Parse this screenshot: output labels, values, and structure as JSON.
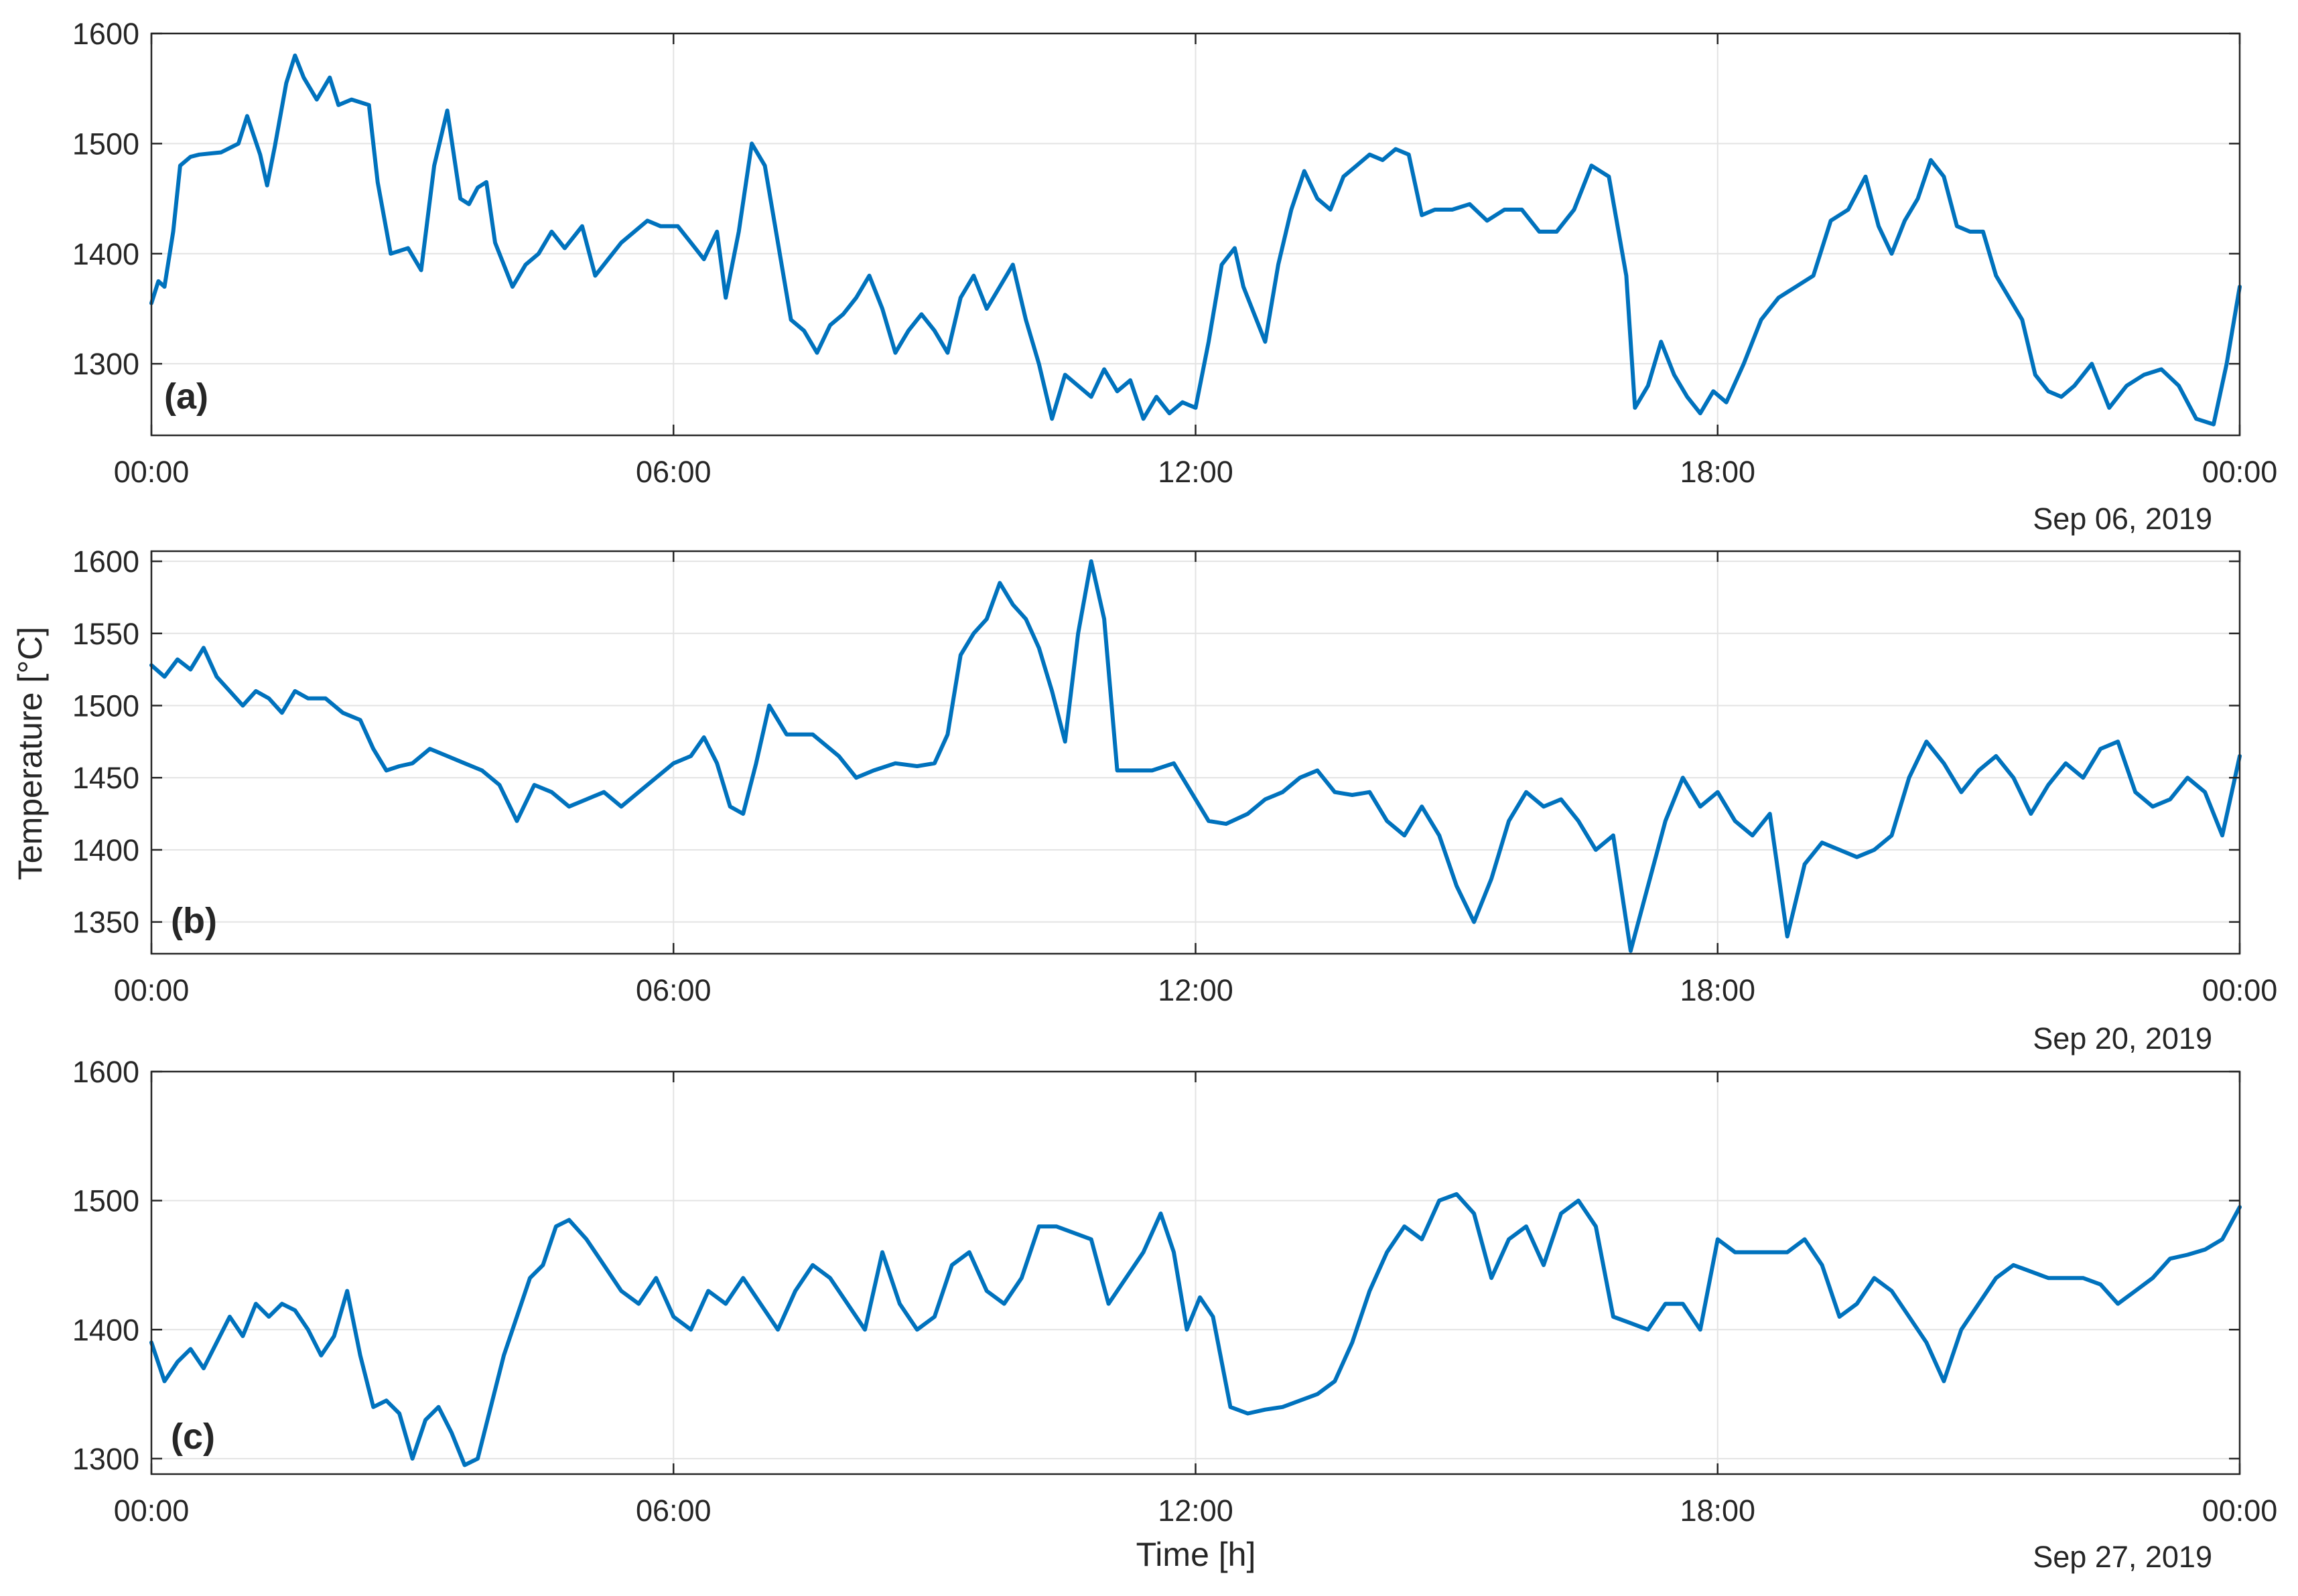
{
  "figure": {
    "ylabel": "Temperature [°C]",
    "xlabel": "Time [h]",
    "line_color": "#0072BD"
  },
  "chart_data": [
    {
      "type": "line",
      "panel": "(a)",
      "date": "Sep 06, 2019",
      "xlabel": "",
      "ylabel": "",
      "xlim": [
        0,
        24
      ],
      "ylim": [
        1235,
        1600
      ],
      "xticks": [
        0,
        6,
        12,
        18,
        24
      ],
      "xticklabels": [
        "00:00",
        "06:00",
        "12:00",
        "18:00",
        "00:00"
      ],
      "yticks": [
        1300,
        1400,
        1500,
        1600
      ],
      "yticklabels": [
        "1300",
        "1400",
        "1500",
        "1600"
      ],
      "grid": true,
      "series": [
        {
          "name": "Temperature",
          "x": [
            0,
            0.08,
            0.15,
            0.25,
            0.33,
            0.45,
            0.55,
            0.8,
            1.0,
            1.1,
            1.25,
            1.33,
            1.42,
            1.55,
            1.65,
            1.75,
            1.9,
            2.05,
            2.15,
            2.3,
            2.5,
            2.6,
            2.75,
            2.95,
            3.1,
            3.25,
            3.4,
            3.55,
            3.65,
            3.75,
            3.85,
            3.95,
            4.15,
            4.3,
            4.45,
            4.6,
            4.75,
            4.95,
            5.1,
            5.25,
            5.4,
            5.55,
            5.7,
            5.85,
            6.05,
            6.2,
            6.35,
            6.5,
            6.6,
            6.75,
            6.9,
            7.05,
            7.2,
            7.35,
            7.5,
            7.65,
            7.8,
            7.95,
            8.1,
            8.25,
            8.4,
            8.55,
            8.7,
            8.85,
            9.0,
            9.15,
            9.3,
            9.45,
            9.6,
            9.75,
            9.9,
            10.05,
            10.2,
            10.35,
            10.5,
            10.65,
            10.8,
            10.95,
            11.1,
            11.25,
            11.4,
            11.55,
            11.7,
            11.85,
            12.0,
            12.15,
            12.3,
            12.45,
            12.55,
            12.65,
            12.8,
            12.95,
            13.1,
            13.25,
            13.4,
            13.55,
            13.7,
            13.85,
            14.0,
            14.15,
            14.3,
            14.45,
            14.6,
            14.75,
            14.95,
            15.15,
            15.35,
            15.55,
            15.75,
            15.95,
            16.15,
            16.35,
            16.55,
            16.75,
            16.95,
            17.05,
            17.2,
            17.35,
            17.5,
            17.65,
            17.8,
            17.95,
            18.1,
            18.3,
            18.5,
            18.7,
            18.9,
            19.1,
            19.3,
            19.5,
            19.7,
            19.85,
            20.0,
            20.15,
            20.3,
            20.45,
            20.6,
            20.75,
            20.9,
            21.05,
            21.2,
            21.35,
            21.5,
            21.65,
            21.8,
            21.95,
            22.1,
            22.3,
            22.5,
            22.7,
            22.9,
            23.1,
            23.3,
            23.5,
            23.7,
            23.85,
            24.0
          ],
          "values": [
            1355,
            1375,
            1370,
            1420,
            1480,
            1488,
            1490,
            1492,
            1500,
            1525,
            1490,
            1462,
            1498,
            1555,
            1580,
            1560,
            1540,
            1560,
            1535,
            1540,
            1535,
            1465,
            1400,
            1405,
            1385,
            1480,
            1530,
            1450,
            1445,
            1460,
            1465,
            1410,
            1370,
            1390,
            1400,
            1420,
            1405,
            1425,
            1380,
            1395,
            1410,
            1420,
            1430,
            1425,
            1425,
            1410,
            1395,
            1420,
            1360,
            1420,
            1500,
            1480,
            1410,
            1340,
            1330,
            1310,
            1335,
            1345,
            1360,
            1380,
            1350,
            1310,
            1330,
            1345,
            1330,
            1310,
            1360,
            1380,
            1350,
            1370,
            1390,
            1340,
            1300,
            1250,
            1290,
            1280,
            1270,
            1295,
            1275,
            1285,
            1250,
            1270,
            1255,
            1265,
            1260,
            1320,
            1390,
            1405,
            1370,
            1350,
            1320,
            1390,
            1440,
            1475,
            1450,
            1440,
            1470,
            1480,
            1490,
            1485,
            1495,
            1490,
            1435,
            1440,
            1440,
            1445,
            1430,
            1440,
            1440,
            1420,
            1420,
            1440,
            1480,
            1470,
            1380,
            1260,
            1280,
            1320,
            1290,
            1270,
            1255,
            1275,
            1265,
            1300,
            1340,
            1360,
            1370,
            1380,
            1430,
            1440,
            1470,
            1425,
            1400,
            1430,
            1450,
            1485,
            1470,
            1425,
            1420,
            1420,
            1380,
            1360,
            1340,
            1290,
            1275,
            1270,
            1280,
            1300,
            1260,
            1280,
            1290,
            1295,
            1280,
            1250,
            1245,
            1300,
            1370
          ]
        }
      ]
    },
    {
      "type": "line",
      "panel": "(b)",
      "date": "Sep 20, 2019",
      "xlabel": "",
      "ylabel": "",
      "xlim": [
        0,
        24
      ],
      "ylim": [
        1328,
        1607
      ],
      "xticks": [
        0,
        6,
        12,
        18,
        24
      ],
      "xticklabels": [
        "00:00",
        "06:00",
        "12:00",
        "18:00",
        "00:00"
      ],
      "yticks": [
        1350,
        1400,
        1450,
        1500,
        1550,
        1600
      ],
      "yticklabels": [
        "1350",
        "1400",
        "1450",
        "1500",
        "1550",
        "1600"
      ],
      "grid": true,
      "series": [
        {
          "name": "Temperature",
          "x": [
            0,
            0.15,
            0.3,
            0.45,
            0.6,
            0.75,
            0.9,
            1.05,
            1.2,
            1.35,
            1.5,
            1.65,
            1.8,
            2.0,
            2.2,
            2.4,
            2.55,
            2.7,
            2.85,
            3.0,
            3.2,
            3.4,
            3.6,
            3.8,
            4.0,
            4.2,
            4.4,
            4.6,
            4.8,
            5.0,
            5.2,
            5.4,
            5.6,
            5.8,
            6.0,
            6.2,
            6.35,
            6.5,
            6.65,
            6.8,
            6.95,
            7.1,
            7.3,
            7.6,
            7.9,
            8.1,
            8.3,
            8.55,
            8.8,
            9.0,
            9.15,
            9.3,
            9.45,
            9.6,
            9.75,
            9.9,
            10.05,
            10.2,
            10.35,
            10.5,
            10.65,
            10.8,
            10.95,
            11.1,
            11.3,
            11.5,
            11.75,
            11.95,
            12.15,
            12.35,
            12.6,
            12.8,
            13.0,
            13.2,
            13.4,
            13.6,
            13.8,
            14.0,
            14.2,
            14.4,
            14.6,
            14.8,
            15.0,
            15.2,
            15.4,
            15.6,
            15.8,
            16.0,
            16.2,
            16.4,
            16.6,
            16.8,
            17.0,
            17.2,
            17.4,
            17.6,
            17.8,
            18.0,
            18.2,
            18.4,
            18.6,
            18.8,
            19.0,
            19.2,
            19.4,
            19.6,
            19.8,
            20.0,
            20.2,
            20.4,
            20.6,
            20.8,
            21.0,
            21.2,
            21.4,
            21.6,
            21.8,
            22.0,
            22.2,
            22.4,
            22.6,
            22.8,
            23.0,
            23.2,
            23.4,
            23.6,
            23.8,
            24.0
          ],
          "values": [
            1528,
            1520,
            1532,
            1525,
            1540,
            1520,
            1510,
            1500,
            1510,
            1505,
            1495,
            1510,
            1505,
            1505,
            1495,
            1490,
            1470,
            1455,
            1458,
            1460,
            1470,
            1465,
            1460,
            1455,
            1445,
            1420,
            1445,
            1440,
            1430,
            1435,
            1440,
            1430,
            1440,
            1450,
            1460,
            1465,
            1478,
            1460,
            1430,
            1425,
            1460,
            1500,
            1480,
            1480,
            1465,
            1450,
            1455,
            1460,
            1458,
            1460,
            1480,
            1535,
            1550,
            1560,
            1585,
            1570,
            1560,
            1540,
            1510,
            1475,
            1550,
            1600,
            1560,
            1455,
            1455,
            1455,
            1460,
            1440,
            1420,
            1418,
            1425,
            1435,
            1440,
            1450,
            1455,
            1440,
            1438,
            1440,
            1420,
            1410,
            1430,
            1410,
            1375,
            1350,
            1380,
            1420,
            1440,
            1430,
            1435,
            1420,
            1400,
            1410,
            1330,
            1375,
            1420,
            1450,
            1430,
            1440,
            1420,
            1410,
            1425,
            1340,
            1390,
            1405,
            1400,
            1395,
            1400,
            1410,
            1450,
            1475,
            1460,
            1440,
            1455,
            1465,
            1450,
            1425,
            1445,
            1460,
            1450,
            1470,
            1475,
            1440,
            1430,
            1435,
            1450,
            1440,
            1410,
            1465
          ]
        }
      ]
    },
    {
      "type": "line",
      "panel": "(c)",
      "date": "Sep 27, 2019",
      "xlabel": "Time [h]",
      "ylabel": "",
      "xlim": [
        0,
        24
      ],
      "ylim": [
        1288,
        1600
      ],
      "xticks": [
        0,
        6,
        12,
        18,
        24
      ],
      "xticklabels": [
        "00:00",
        "06:00",
        "12:00",
        "18:00",
        "00:00"
      ],
      "yticks": [
        1300,
        1400,
        1500,
        1600
      ],
      "yticklabels": [
        "1300",
        "1400",
        "1500",
        "1600"
      ],
      "grid": true,
      "series": [
        {
          "name": "Temperature",
          "x": [
            0,
            0.15,
            0.3,
            0.45,
            0.6,
            0.75,
            0.9,
            1.05,
            1.2,
            1.35,
            1.5,
            1.65,
            1.8,
            1.95,
            2.1,
            2.25,
            2.4,
            2.55,
            2.7,
            2.85,
            3.0,
            3.15,
            3.3,
            3.45,
            3.6,
            3.75,
            3.9,
            4.05,
            4.2,
            4.35,
            4.5,
            4.65,
            4.8,
            5.0,
            5.2,
            5.4,
            5.6,
            5.8,
            6.0,
            6.2,
            6.4,
            6.6,
            6.8,
            7.0,
            7.2,
            7.4,
            7.6,
            7.8,
            8.0,
            8.2,
            8.4,
            8.6,
            8.8,
            9.0,
            9.2,
            9.4,
            9.6,
            9.8,
            10.0,
            10.2,
            10.4,
            10.6,
            10.8,
            11.0,
            11.2,
            11.4,
            11.6,
            11.75,
            11.9,
            12.05,
            12.2,
            12.4,
            12.6,
            12.8,
            13.0,
            13.2,
            13.4,
            13.6,
            13.8,
            14.0,
            14.2,
            14.4,
            14.6,
            14.8,
            15.0,
            15.2,
            15.4,
            15.6,
            15.8,
            16.0,
            16.2,
            16.4,
            16.6,
            16.8,
            17.0,
            17.2,
            17.4,
            17.6,
            17.8,
            18.0,
            18.2,
            18.4,
            18.6,
            18.8,
            19.0,
            19.2,
            19.4,
            19.6,
            19.8,
            20.0,
            20.2,
            20.4,
            20.6,
            20.8,
            21.0,
            21.2,
            21.4,
            21.6,
            21.8,
            22.0,
            22.2,
            22.4,
            22.6,
            22.8,
            23.0,
            23.2,
            23.4,
            23.6,
            23.8,
            24.0
          ],
          "values": [
            1390,
            1360,
            1375,
            1385,
            1370,
            1390,
            1410,
            1395,
            1420,
            1410,
            1420,
            1415,
            1400,
            1380,
            1395,
            1430,
            1380,
            1340,
            1345,
            1335,
            1300,
            1330,
            1340,
            1320,
            1295,
            1300,
            1340,
            1380,
            1410,
            1440,
            1450,
            1480,
            1485,
            1470,
            1450,
            1430,
            1420,
            1440,
            1410,
            1400,
            1430,
            1420,
            1440,
            1420,
            1400,
            1430,
            1450,
            1440,
            1420,
            1400,
            1460,
            1420,
            1400,
            1410,
            1450,
            1460,
            1430,
            1420,
            1440,
            1480,
            1480,
            1475,
            1470,
            1420,
            1440,
            1460,
            1490,
            1460,
            1400,
            1425,
            1410,
            1340,
            1335,
            1338,
            1340,
            1345,
            1350,
            1360,
            1390,
            1430,
            1460,
            1480,
            1470,
            1500,
            1505,
            1490,
            1440,
            1470,
            1480,
            1450,
            1490,
            1500,
            1480,
            1410,
            1405,
            1400,
            1420,
            1420,
            1400,
            1470,
            1460,
            1460,
            1460,
            1460,
            1470,
            1450,
            1410,
            1420,
            1440,
            1430,
            1410,
            1390,
            1360,
            1400,
            1420,
            1440,
            1450,
            1445,
            1440,
            1440,
            1440,
            1435,
            1420,
            1430,
            1440,
            1455,
            1458,
            1462,
            1470,
            1495
          ]
        }
      ]
    }
  ]
}
